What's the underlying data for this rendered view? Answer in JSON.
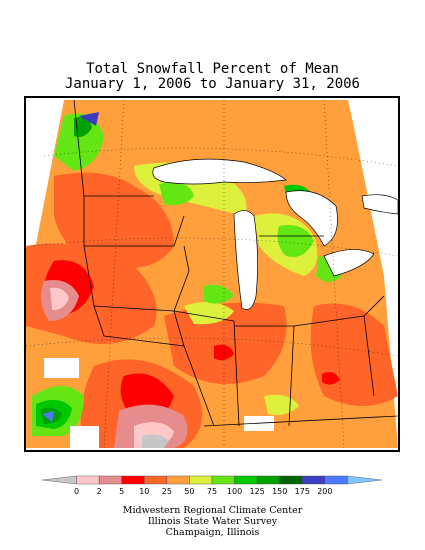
{
  "title": {
    "line1": "Total Snowfall Percent of Mean",
    "line2": "January 1, 2006 to January 31, 2006"
  },
  "legend": {
    "bins": [
      {
        "label": "0",
        "color": "#c6c6c6"
      },
      {
        "label": "2",
        "color": "#ffc8c8"
      },
      {
        "label": "5",
        "color": "#e68c8c"
      },
      {
        "label": "10",
        "color": "#ff0000"
      },
      {
        "label": "25",
        "color": "#ff6428"
      },
      {
        "label": "50",
        "color": "#ffa03c"
      },
      {
        "label": "75",
        "color": "#dcf03c"
      },
      {
        "label": "100",
        "color": "#64e614"
      },
      {
        "label": "125",
        "color": "#00c800"
      },
      {
        "label": "150",
        "color": "#00a000"
      },
      {
        "label": "175",
        "color": "#006400"
      },
      {
        "label": "200",
        "color": "#3c3cbe"
      },
      {
        "label": "",
        "color": "#5078ff"
      },
      {
        "label": "",
        "color": "#82c8ff"
      }
    ]
  },
  "credits": {
    "line1": "Midwestern Regional Climate Center",
    "line2": "Illinois State Water Survey",
    "line3": "Champaign, Illinois"
  }
}
